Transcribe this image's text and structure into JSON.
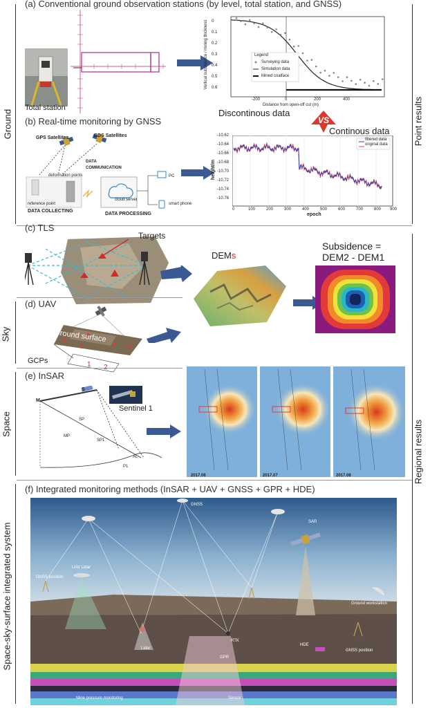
{
  "left_categories": [
    "Ground",
    "Sky",
    "Space",
    "Space-sky-surface integrated system"
  ],
  "right_categories": [
    "Point results",
    "Regional results"
  ],
  "panel_a": {
    "title": "(a) Conventional ground observation stations (by level, total station, and GNSS)",
    "photo_label": "Total station",
    "plot": {
      "ylabel": "Vertical subsidence / mining thickness",
      "xlabel": "Distance from open-off cut (m)",
      "yticks": [
        "0",
        "0.1",
        "0.2",
        "0.3",
        "0.4",
        "0.5",
        "0.6"
      ],
      "xticks": [
        "-200",
        "0",
        "200",
        "400"
      ],
      "legend_title": "Legend",
      "legend": [
        "Surveying data",
        "Simulation data",
        "Mined coalface"
      ]
    }
  },
  "comparison": {
    "left": "Discontinous data",
    "right": "Continous data"
  },
  "panel_b": {
    "title": "(b) Real-time monitoring by GNSS",
    "labels": {
      "gps": "GPS Satellites",
      "bds": "BDS Satellites",
      "comm": "DATA COMMUNICATION",
      "deformation": "deformation points",
      "reference": "reference point",
      "collecting": "DATA COLLECTING",
      "server": "cloud server",
      "processing": "DATA PROCESSING",
      "pc": "PC",
      "phone": "smart phone"
    },
    "plot": {
      "ylabel": "height/m",
      "xlabel": "epoch",
      "yticks": [
        "-10.62",
        "-10.64",
        "-10.66",
        "-10.68",
        "-10.70",
        "-10.72",
        "-10.74",
        "-10.76"
      ],
      "xticks": [
        "0",
        "100",
        "200",
        "300",
        "400",
        "500",
        "600",
        "700",
        "800",
        "900"
      ],
      "legend": [
        "filtered data",
        "original data"
      ]
    }
  },
  "panel_c": {
    "title": "(c) TLS",
    "targets": "Targets",
    "dems_prefix": "DEM",
    "dems_suffix": "s",
    "subsidence_line1": "Subsidence =",
    "subsidence_line2": "DEM2 - DEM1"
  },
  "panel_d": {
    "title": "(d) UAV",
    "surface": "Ground surface",
    "gcps": "GCPs",
    "n1": "1",
    "n2": "2"
  },
  "panel_e": {
    "title": "(e) InSAR",
    "sentinel": "Sentinel 1",
    "geom": [
      "M",
      "S",
      "SP",
      "MP",
      "SP1",
      "P1",
      "AL"
    ],
    "dates": [
      "2017.06",
      "2017.07",
      "2017.08"
    ]
  },
  "panel_f": {
    "title": "(f) Integrated monitoring methods (InSAR + UAV + GNSS + GPR + HDE)",
    "labels": [
      "GNSS",
      "SAR",
      "UAV  Lidar",
      "GNSS position",
      "Ground workstation",
      "Lidar",
      "RTK",
      "HDE",
      "GNSS position",
      "GPR",
      "Mine pressure monitoring",
      "Sensor"
    ]
  },
  "colors": {
    "arrow": "#3b5a94",
    "vs": "#d93a2c",
    "magenta": "#c35aa0",
    "red": "#e53935"
  }
}
